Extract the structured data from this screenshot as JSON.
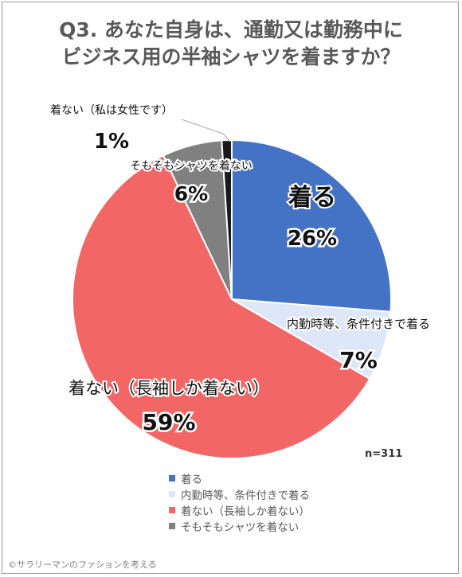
{
  "chart_data": {
    "type": "pie",
    "title_line1": "Q3. あなた自身は、通勤又は勤務中に",
    "title_line2": "ビジネス用の半袖シャツを着ますか？",
    "slices": [
      {
        "label": "着る",
        "value": 26,
        "value_label": "26%",
        "color": "#4472c4"
      },
      {
        "label": "内勤時等、条件付きで着る",
        "value": 7,
        "value_label": "7%",
        "color": "#dde7f7"
      },
      {
        "label": "着ない（長袖しか着ない）",
        "value": 59,
        "value_label": "59%",
        "color": "#f26666"
      },
      {
        "label": "そもそもシャツを着ない",
        "value": 6,
        "value_label": "6%",
        "color": "#808080"
      },
      {
        "label": "着ない（私は女性です）",
        "value": 1,
        "value_label": "1%",
        "color": "#1a1a1a"
      }
    ],
    "legend": [
      "着る",
      "内勤時等、条件付きで着る",
      "着ない（長袖しか着ない）",
      "そもそもシャツを着ない"
    ],
    "legend_placement": "bottom",
    "n_label": "n=311"
  },
  "footer": {
    "credit": "©サラリーマンのファションを考える"
  }
}
